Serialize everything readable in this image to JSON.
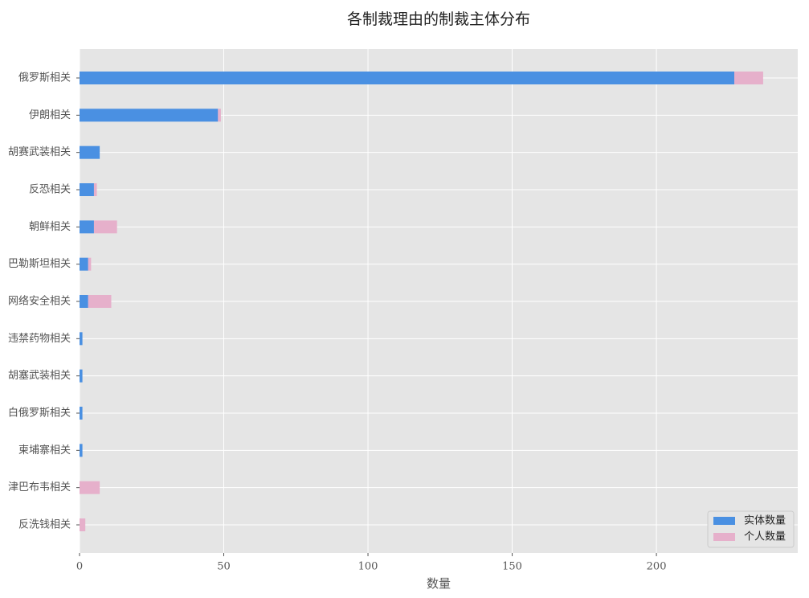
{
  "chart_data": {
    "type": "stacked_barh",
    "title": "各制裁理由的制裁主体分布",
    "xlabel": "数量",
    "categories": [
      "俄罗斯相关",
      "伊朗相关",
      "胡赛武装相关",
      "反恐相关",
      "朝鲜相关",
      "巴勒斯坦相关",
      "网络安全相关",
      "违禁药物相关",
      "胡塞武装相关",
      "白俄罗斯相关",
      "柬埔寨相关",
      "津巴布韦相关",
      "反洗钱相关"
    ],
    "series": [
      {
        "name": "实体数量",
        "color": "#4a90e2",
        "values": [
          227,
          48,
          7,
          5,
          5,
          3,
          3,
          1,
          1,
          1,
          1,
          0,
          0
        ]
      },
      {
        "name": "个人数量",
        "color": "#e6b0cb",
        "values": [
          10,
          1,
          0,
          1,
          8,
          1,
          8,
          0,
          0,
          0,
          0,
          7,
          2
        ]
      }
    ],
    "xlim": [
      0,
      249
    ],
    "xticks": [
      0,
      50,
      100,
      150,
      200
    ],
    "grid": true,
    "legend": "lower right"
  }
}
